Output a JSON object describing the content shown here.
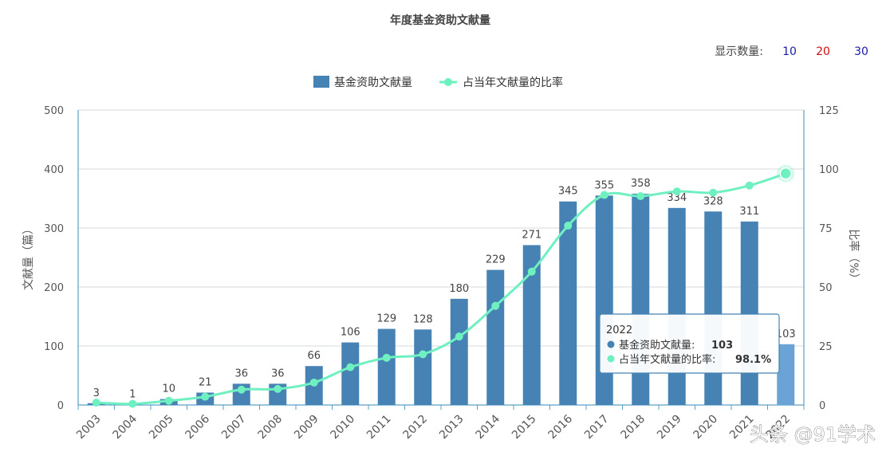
{
  "display_count": {
    "label": "显示数量:",
    "options": [
      {
        "value": "10",
        "color": "#1a1aa6"
      },
      {
        "value": "20",
        "color": "#d01010"
      },
      {
        "value": "30",
        "color": "#1a1aa6"
      }
    ]
  },
  "watermark": "头条 @91学术",
  "chart_data": {
    "type": "bar",
    "title": "年度基金资助文献量",
    "categories": [
      "2003",
      "2004",
      "2005",
      "2006",
      "2007",
      "2008",
      "2009",
      "2010",
      "2011",
      "2012",
      "2013",
      "2014",
      "2015",
      "2016",
      "2017",
      "2018",
      "2019",
      "2020",
      "2021",
      "2022"
    ],
    "series": [
      {
        "name": "基金资助文献量",
        "type": "bar",
        "axis": "left",
        "color": "#4682b4",
        "values": [
          3,
          1,
          10,
          21,
          36,
          36,
          66,
          106,
          129,
          128,
          180,
          229,
          271,
          345,
          355,
          358,
          334,
          328,
          311,
          103
        ]
      },
      {
        "name": "占当年文献量的比率",
        "type": "line",
        "axis": "right",
        "color": "#6ff0c0",
        "values": [
          1,
          0.5,
          1.8,
          3.5,
          6.5,
          6.8,
          9.5,
          16,
          20,
          21.5,
          29,
          42,
          56.5,
          76,
          89,
          88.5,
          90.5,
          90,
          93,
          98.1
        ]
      }
    ],
    "ylabel": "文献量（篇）",
    "ylabel_right": "比率（%）",
    "ylim": [
      0,
      500
    ],
    "ylim_right": [
      0,
      125
    ],
    "yticks": [
      "0",
      "100",
      "200",
      "300",
      "400",
      "500"
    ],
    "yticks_right": [
      "0",
      "25",
      "50",
      "75",
      "100",
      "125"
    ],
    "grid": true,
    "legend": "top-center",
    "tooltip": {
      "category": "2022",
      "bar_label": "基金资助文献量:",
      "bar_value": "103",
      "line_label": "占当年文献量的比率:",
      "line_value": "98.1%"
    }
  }
}
